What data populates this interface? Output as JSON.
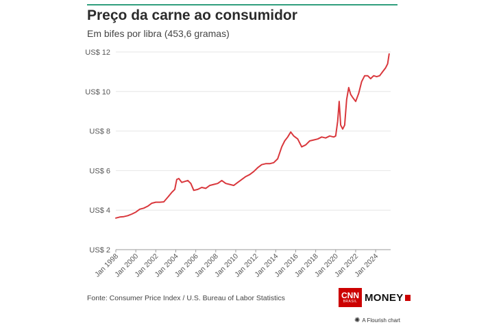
{
  "header": {
    "title": "Preço da carne ao consumidor",
    "subtitle": "Em bifes por libra (453,6 gramas)"
  },
  "footer": {
    "source": "Fonte: Consumer Price Index / U.S. Bureau of Labor Statistics",
    "logo_primary": "CNN",
    "logo_secondary": "BRASIL",
    "logo_money": "MONEY",
    "credit": "A Flourish chart",
    "credit_icon": "flourish-asterisk-icon"
  },
  "colors": {
    "line": "#d9373c",
    "accent": "#2f9e7c",
    "brand": "#cc0000"
  },
  "chart_data": {
    "type": "line",
    "title": "Preço da carne ao consumidor",
    "subtitle": "Em bifes por libra (453,6 gramas)",
    "xlabel": "",
    "ylabel": "",
    "ylim": [
      2,
      12
    ],
    "xlim": [
      1998.0,
      2025.5
    ],
    "y_ticks": [
      {
        "value": 2,
        "label": "US$ 2"
      },
      {
        "value": 4,
        "label": "US$ 4"
      },
      {
        "value": 6,
        "label": "US$ 6"
      },
      {
        "value": 8,
        "label": "US$ 8"
      },
      {
        "value": 10,
        "label": "US$ 10"
      },
      {
        "value": 12,
        "label": "US$ 12"
      }
    ],
    "x_ticks": [
      {
        "value": 1998,
        "label": "Jan 1998"
      },
      {
        "value": 2000,
        "label": "Jan 2000"
      },
      {
        "value": 2002,
        "label": "Jan 2002"
      },
      {
        "value": 2004,
        "label": "Jan 2004"
      },
      {
        "value": 2006,
        "label": "Jan 2006"
      },
      {
        "value": 2008,
        "label": "Jan 2008"
      },
      {
        "value": 2010,
        "label": "Jan 2010"
      },
      {
        "value": 2012,
        "label": "Jan 2012"
      },
      {
        "value": 2014,
        "label": "Jan 2014"
      },
      {
        "value": 2016,
        "label": "Jan 2016"
      },
      {
        "value": 2018,
        "label": "Jan 2018"
      },
      {
        "value": 2020,
        "label": "Jan 2020"
      },
      {
        "value": 2022,
        "label": "Jan 2022"
      },
      {
        "value": 2024,
        "label": "Jan 2024"
      }
    ],
    "grid": true,
    "legend": "none",
    "series": [
      {
        "x": [
          1998.0,
          1998.4,
          1998.8,
          1999.2,
          1999.6,
          2000.0,
          2000.4,
          2000.8,
          2001.2,
          2001.6,
          2002.0,
          2002.4,
          2002.8,
          2003.2,
          2003.6,
          2003.9,
          2004.1,
          2004.3,
          2004.6,
          2004.9,
          2005.2,
          2005.5,
          2005.8,
          2006.2,
          2006.6,
          2007.0,
          2007.4,
          2007.8,
          2008.2,
          2008.6,
          2009.0,
          2009.4,
          2009.8,
          2010.2,
          2010.6,
          2011.0,
          2011.4,
          2011.8,
          2012.2,
          2012.6,
          2013.0,
          2013.4,
          2013.8,
          2014.2,
          2014.6,
          2014.9,
          2015.2,
          2015.5,
          2015.8,
          2016.2,
          2016.6,
          2017.0,
          2017.4,
          2017.8,
          2018.2,
          2018.6,
          2019.0,
          2019.4,
          2019.8,
          2020.0,
          2020.2,
          2020.35,
          2020.5,
          2020.7,
          2020.9,
          2021.1,
          2021.3,
          2021.5,
          2021.7,
          2022.0,
          2022.3,
          2022.6,
          2022.9,
          2023.2,
          2023.5,
          2023.8,
          2024.1,
          2024.4,
          2024.7,
          2025.0,
          2025.2,
          2025.35
        ],
        "values": [
          3.6,
          3.65,
          3.67,
          3.72,
          3.8,
          3.9,
          4.05,
          4.1,
          4.2,
          4.35,
          4.4,
          4.4,
          4.42,
          4.65,
          4.9,
          5.05,
          5.55,
          5.6,
          5.4,
          5.45,
          5.5,
          5.35,
          5.0,
          5.05,
          5.15,
          5.1,
          5.25,
          5.3,
          5.35,
          5.5,
          5.35,
          5.3,
          5.25,
          5.4,
          5.55,
          5.7,
          5.8,
          5.95,
          6.15,
          6.3,
          6.35,
          6.35,
          6.4,
          6.6,
          7.2,
          7.5,
          7.7,
          7.95,
          7.75,
          7.6,
          7.2,
          7.3,
          7.5,
          7.55,
          7.6,
          7.7,
          7.65,
          7.75,
          7.7,
          7.75,
          8.5,
          9.5,
          8.3,
          8.1,
          8.3,
          9.6,
          10.2,
          9.85,
          9.7,
          9.5,
          9.9,
          10.5,
          10.8,
          10.8,
          10.65,
          10.8,
          10.75,
          10.8,
          11.0,
          11.2,
          11.4,
          11.9
        ]
      }
    ]
  }
}
